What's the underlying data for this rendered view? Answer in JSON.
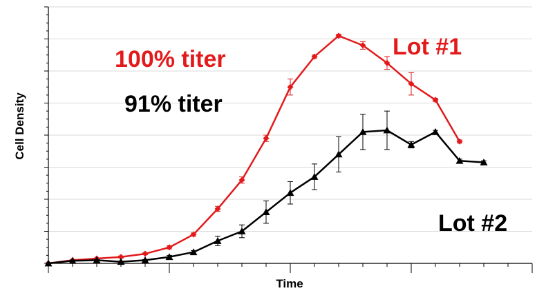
{
  "chart_data": {
    "type": "line",
    "title": "",
    "xlabel": "Time",
    "ylabel": "Cell Density",
    "xlim": [
      0,
      20
    ],
    "ylim": [
      0,
      8
    ],
    "grid": "horizontal",
    "series": [
      {
        "name": "Lot #1",
        "color": "#e31a1c",
        "marker": "diamond",
        "x": [
          0,
          1,
          2,
          3,
          4,
          5,
          6,
          7,
          8,
          9,
          10,
          11,
          12,
          13,
          14,
          15,
          16,
          17
        ],
        "y": [
          0.0,
          0.1,
          0.15,
          0.2,
          0.3,
          0.5,
          0.9,
          1.7,
          2.6,
          3.9,
          5.5,
          6.45,
          7.1,
          6.8,
          6.25,
          5.6,
          5.1,
          3.8
        ],
        "err": [
          0.02,
          0.02,
          0.02,
          0.03,
          0.03,
          0.05,
          0.05,
          0.08,
          0.1,
          0.1,
          0.25,
          0.05,
          0.05,
          0.12,
          0.2,
          0.35,
          0.05,
          0.05
        ]
      },
      {
        "name": "Lot #2",
        "color": "#000000",
        "marker": "triangle",
        "x": [
          0,
          1,
          2,
          3,
          4,
          5,
          6,
          7,
          8,
          9,
          10,
          11,
          12,
          13,
          14,
          15,
          16,
          17,
          18
        ],
        "y": [
          0.0,
          0.08,
          0.1,
          0.05,
          0.1,
          0.2,
          0.35,
          0.7,
          1.0,
          1.6,
          2.2,
          2.7,
          3.4,
          4.1,
          4.15,
          3.7,
          4.1,
          3.2,
          3.15
        ],
        "err": [
          0.02,
          0.02,
          0.02,
          0.02,
          0.02,
          0.05,
          0.05,
          0.15,
          0.2,
          0.35,
          0.35,
          0.4,
          0.55,
          0.55,
          0.6,
          0.1,
          0.05,
          0.05,
          0.05
        ]
      }
    ],
    "annotations": {
      "lot1": "Lot #1",
      "lot2": "Lot #2",
      "titer100": "100% titer",
      "titer91": "91% titer"
    }
  }
}
